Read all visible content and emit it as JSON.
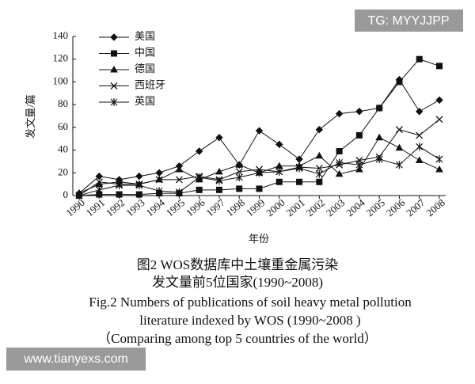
{
  "chart_data": {
    "type": "line",
    "ylabel": "发文量/篇",
    "xlabel": "年份",
    "categories": [
      "1990",
      "1991",
      "1992",
      "1993",
      "1994",
      "1995",
      "1996",
      "1997",
      "1998",
      "1999",
      "2000",
      "2001",
      "2002",
      "2003",
      "2004",
      "2005",
      "2006",
      "2007",
      "2008"
    ],
    "series": [
      {
        "name": "美国",
        "color": "#111111",
        "marker": "diamond",
        "values": [
          2,
          17,
          14,
          17,
          20,
          26,
          39,
          51,
          27,
          57,
          45,
          32,
          58,
          72,
          74,
          77,
          102,
          74,
          84
        ]
      },
      {
        "name": "中国",
        "color": "#111111",
        "marker": "square",
        "values": [
          0,
          1,
          1,
          1,
          2,
          2,
          5,
          5,
          6,
          6,
          12,
          12,
          12,
          39,
          53,
          77,
          100,
          120,
          114
        ]
      },
      {
        "name": "德国",
        "color": "#111111",
        "marker": "triangle",
        "values": [
          2,
          10,
          12,
          10,
          14,
          23,
          14,
          21,
          27,
          20,
          26,
          26,
          35,
          19,
          23,
          51,
          42,
          31,
          23
        ]
      },
      {
        "name": "西班牙",
        "color": "#111111",
        "marker": "cross",
        "values": [
          0,
          12,
          10,
          10,
          14,
          14,
          17,
          14,
          21,
          23,
          21,
          25,
          24,
          27,
          31,
          34,
          58,
          53,
          67
        ]
      },
      {
        "name": "英国",
        "color": "#111111",
        "marker": "star",
        "values": [
          0,
          5,
          9,
          9,
          4,
          3,
          16,
          13,
          16,
          20,
          21,
          24,
          19,
          29,
          27,
          32,
          27,
          43,
          32
        ]
      }
    ],
    "ylim": [
      0,
      140
    ],
    "yticks": [
      0,
      20,
      40,
      60,
      80,
      100,
      120,
      140
    ],
    "grid": false,
    "legend": "upper-left",
    "caption": [
      "图2 WOS数据库中土壤重金属污染",
      "发文量前5位国家(1990~2008)",
      "Fig.2  Numbers of publications of soil heavy metal pollution",
      "literature indexed by WOS (1990~2008 )",
      "（Comparing among top 5 countries of the world）"
    ]
  },
  "watermarks": {
    "top_right": "TG: MYYJJPP",
    "bottom_left": "www.tianyexs.com"
  }
}
